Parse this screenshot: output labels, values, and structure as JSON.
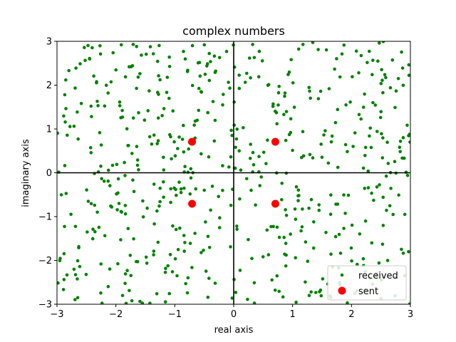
{
  "chart_data": {
    "type": "scatter",
    "title": "complex numbers",
    "xlabel": "real axis",
    "ylabel": "imaginary axis",
    "xlim": [
      -3,
      3
    ],
    "ylim": [
      -3,
      3
    ],
    "xticks": [
      -3,
      -2,
      -1,
      0,
      1,
      2,
      3
    ],
    "yticks": [
      -3,
      -2,
      -1,
      0,
      1,
      2,
      3
    ],
    "grid": false,
    "legend_position": "lower right",
    "reference_lines": [
      "x=0",
      "y=0"
    ],
    "series": [
      {
        "name": "received",
        "color": "#008000",
        "marker": "small-dot",
        "count": 600,
        "distribution": "uniform over the plotted area"
      },
      {
        "name": "sent",
        "color": "#ff0000",
        "marker": "large-dot",
        "points": [
          {
            "x": -0.707,
            "y": 0.707
          },
          {
            "x": 0.707,
            "y": 0.707
          },
          {
            "x": -0.707,
            "y": -0.707
          },
          {
            "x": 0.707,
            "y": -0.707
          }
        ]
      }
    ]
  }
}
